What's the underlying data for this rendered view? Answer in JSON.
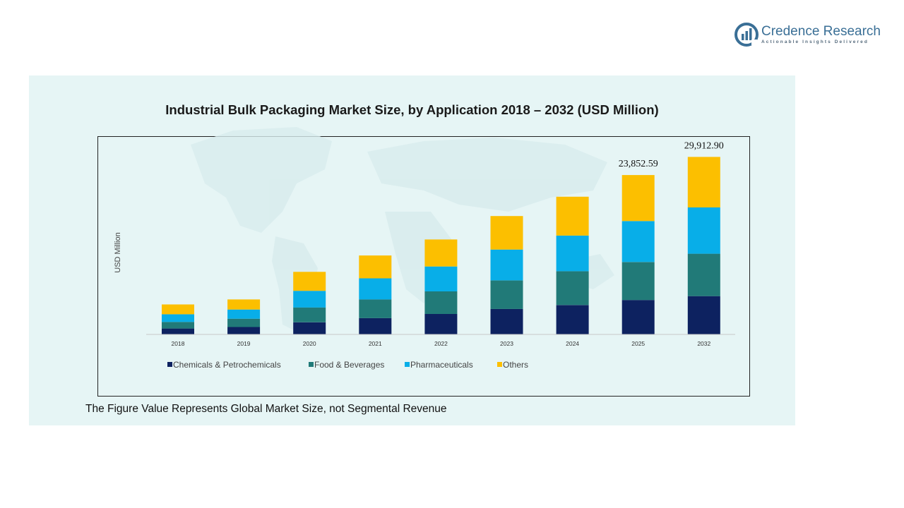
{
  "brand": {
    "name": "Credence Research",
    "tagline": "Actionable Insights Delivered",
    "logo_icon": "credence-logo-icon"
  },
  "note": "The Figure Value Represents Global Market Size, not Segmental Revenue",
  "chart_data": {
    "type": "bar",
    "stacked": true,
    "title": "Industrial Bulk Packaging Market Size, by Application 2018 – 2032 (USD Million)",
    "xlabel": "",
    "ylabel": "USD Million",
    "categories": [
      "2018",
      "2019",
      "2020",
      "2021",
      "2022",
      "2023",
      "2024",
      "2025",
      "2032"
    ],
    "ylim": [
      0,
      34000
    ],
    "grid": false,
    "legend_position": "bottom",
    "series": [
      {
        "name": "Chemicals & Petrochemicals",
        "color": "#0d2260",
        "values": [
          1000,
          1250,
          2050,
          2750,
          3450,
          4300,
          4950,
          5800,
          6450
        ]
      },
      {
        "name": "Food & Beverages",
        "color": "#217a78",
        "values": [
          1100,
          1400,
          2500,
          3150,
          3800,
          4800,
          5700,
          6400,
          7150
        ]
      },
      {
        "name": "Pharmaceuticals",
        "color": "#08aee8",
        "values": [
          1300,
          1550,
          2800,
          3550,
          4200,
          5200,
          6000,
          6900,
          7800
        ]
      },
      {
        "name": "Others",
        "color": "#fcbf00",
        "values": [
          1650,
          1700,
          3200,
          3850,
          4550,
          5650,
          6550,
          7752.59,
          8512.9
        ]
      }
    ],
    "data_labels": [
      {
        "category": "2025",
        "text": "23,852.59"
      },
      {
        "category": "2032",
        "text": "29,912.90"
      }
    ]
  }
}
